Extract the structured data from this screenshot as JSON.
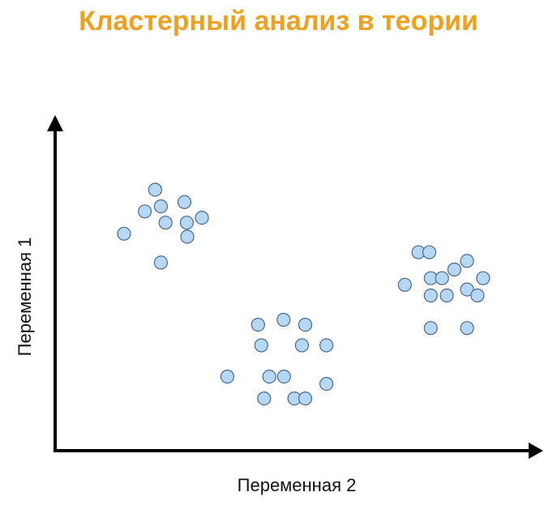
{
  "title": "Кластерный анализ в теории",
  "colors": {
    "title": "#f0a01e",
    "point_fill": "#b6d7f5",
    "point_stroke": "#4a6a8c",
    "axis": "#000000"
  },
  "chart_data": {
    "type": "scatter",
    "title": "Кластерный анализ в теории",
    "xlabel": "Переменная 2",
    "ylabel": "Переменная 1",
    "xlim": [
      0,
      100
    ],
    "ylim": [
      0,
      100
    ],
    "grid": false,
    "legend": "none",
    "x_ticks": [],
    "y_ticks": [],
    "series": [
      {
        "points": [
          [
            14.6,
            65.3
          ],
          [
            19.0,
            72.0
          ],
          [
            21.2,
            78.5
          ],
          [
            22.4,
            73.5
          ],
          [
            22.4,
            56.6
          ],
          [
            23.4,
            68.6
          ],
          [
            27.4,
            74.8
          ],
          [
            27.9,
            68.6
          ],
          [
            28.0,
            64.4
          ],
          [
            31.1,
            70.1
          ],
          [
            36.5,
            22.3
          ],
          [
            43.0,
            37.9
          ],
          [
            43.7,
            31.7
          ],
          [
            44.3,
            15.7
          ],
          [
            45.4,
            22.3
          ],
          [
            48.4,
            39.4
          ],
          [
            48.5,
            22.3
          ],
          [
            50.7,
            15.7
          ],
          [
            52.3,
            31.7
          ],
          [
            53.0,
            37.9
          ],
          [
            53.0,
            15.7
          ],
          [
            57.5,
            31.7
          ],
          [
            57.5,
            20.1
          ],
          [
            74.1,
            49.9
          ],
          [
            77.0,
            59.7
          ],
          [
            79.6,
            51.9
          ],
          [
            79.6,
            46.7
          ],
          [
            79.6,
            36.9
          ],
          [
            79.3,
            59.7
          ],
          [
            82.0,
            51.9
          ],
          [
            83.0,
            46.7
          ],
          [
            84.6,
            54.5
          ],
          [
            87.3,
            57.1
          ],
          [
            87.3,
            48.5
          ],
          [
            87.3,
            36.9
          ],
          [
            89.5,
            46.7
          ],
          [
            90.7,
            51.9
          ]
        ]
      }
    ]
  }
}
